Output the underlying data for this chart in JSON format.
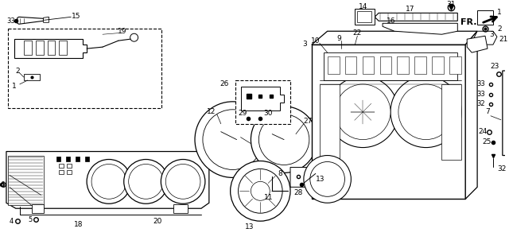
{
  "bg_color": "#ffffff",
  "fig_width": 6.4,
  "fig_height": 3.12,
  "dpi": 100
}
